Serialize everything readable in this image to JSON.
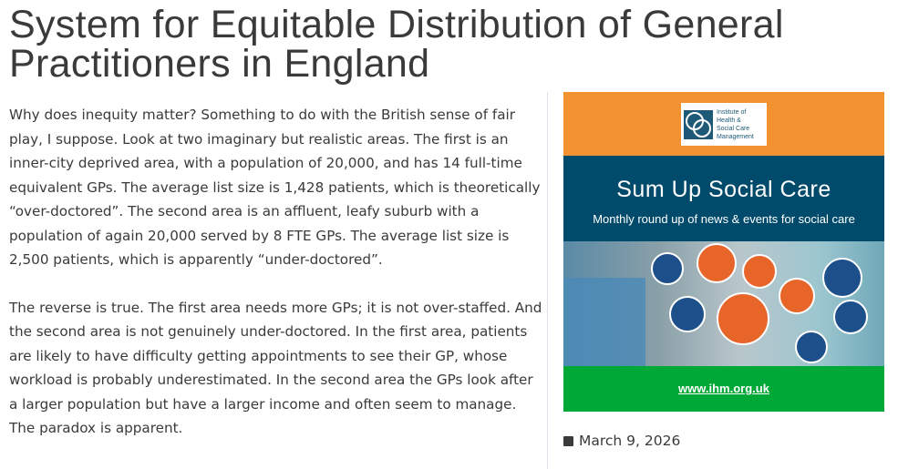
{
  "post": {
    "title": "System for Equitable Distribution of General Practitioners in England",
    "paragraphs": [
      "Why does inequity matter? Something to do with the British sense of fair play, I suppose. Look at two imaginary but realistic areas. The first is an inner-city deprived area, with a population of 20,000, and has 14 full-time equivalent GPs. The average list size is 1,428 patients, which is theoretically “over-doctored”. The second area is an affluent, leafy suburb with a population of again 20,000 served by 8 FTE GPs. The average list size is 2,500 patients, which is apparently “under-doctored”.",
      "The reverse is true. The first area needs more GPs; it is not over-staffed. And the second area is not genuinely under-doctored. In the first area, patients are likely to have difficulty getting appointments to see their GP, whose workload is probably underestimated. In the second area the GPs look after a larger population but have a larger income and often seem to manage. The paradox is apparent."
    ]
  },
  "sidebar": {
    "banner": {
      "logo_text": "Institute of Health & Social Care Management",
      "title": "Sum Up Social Care",
      "subtitle": "Monthly round up of news & events for social care",
      "url": "www.ihm.org.uk",
      "colors": {
        "orange": "#f39230",
        "blue": "#004b6b",
        "green": "#00a838"
      }
    },
    "date": "March 9, 2026",
    "date_icon": "calendar-icon"
  }
}
